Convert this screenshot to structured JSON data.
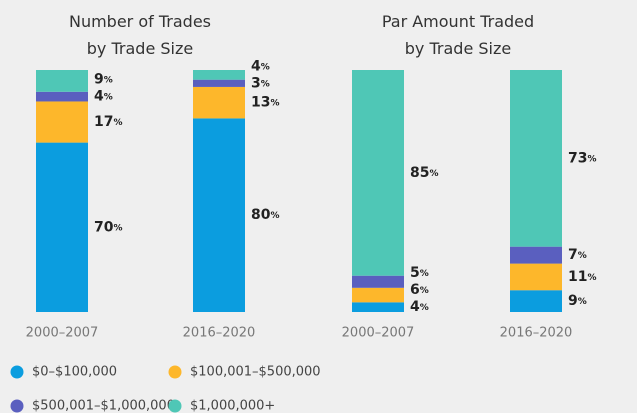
{
  "chart_data": [
    {
      "type": "bar",
      "stacked": true,
      "title": "Number of Trades\nby Trade Size",
      "categories": [
        "2000–2007",
        "2016–2020"
      ],
      "series": [
        {
          "name": "$0–$100,000",
          "color": "#0b9ddf",
          "values": [
            70,
            80
          ],
          "value_labels": [
            "70%",
            "80%"
          ]
        },
        {
          "name": "$100,001–$500,000",
          "color": "#fdb72b",
          "values": [
            17,
            13
          ],
          "value_labels": [
            "17%",
            "13%"
          ]
        },
        {
          "name": "$500,001–$1,000,000",
          "color": "#5a5fbf",
          "values": [
            4,
            3
          ],
          "value_labels": [
            "4%",
            "3%"
          ]
        },
        {
          "name": "$1,000,000+",
          "color": "#4fc7b6",
          "values": [
            9,
            4
          ],
          "value_labels": [
            "9%",
            "4%"
          ]
        }
      ]
    },
    {
      "type": "bar",
      "stacked": true,
      "title": "Par Amount Traded\nby Trade Size",
      "categories": [
        "2000–2007",
        "2016–2020"
      ],
      "series": [
        {
          "name": "$0–$100,000",
          "color": "#0b9ddf",
          "values": [
            4,
            9
          ],
          "value_labels": [
            "4%",
            "9%"
          ]
        },
        {
          "name": "$100,001–$500,000",
          "color": "#fdb72b",
          "values": [
            6,
            11
          ],
          "value_labels": [
            "6%",
            "11%"
          ]
        },
        {
          "name": "$500,001–$1,000,000",
          "color": "#5a5fbf",
          "values": [
            5,
            7
          ],
          "value_labels": [
            "5%",
            "7%"
          ]
        },
        {
          "name": "$1,000,000+",
          "color": "#4fc7b6",
          "values": [
            85,
            73
          ],
          "value_labels": [
            "85%",
            "73%"
          ]
        }
      ]
    }
  ]
}
